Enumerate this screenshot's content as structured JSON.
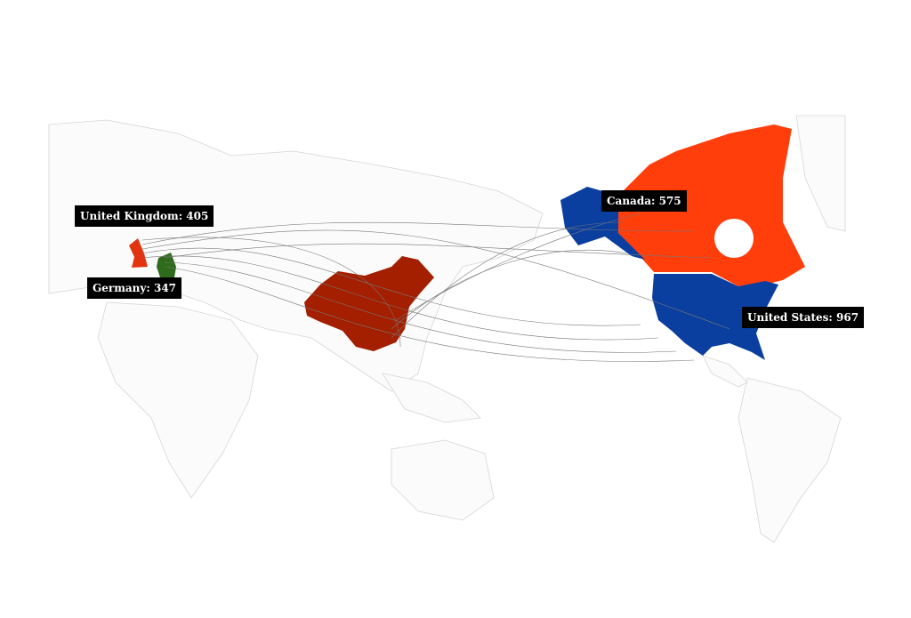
{
  "map": {
    "colors": {
      "china": "#a31f00",
      "united_kingdom": "#e2350f",
      "germany": "#2e6b1c",
      "canada": "#ff3e0c",
      "united_states": "#0a3f9f",
      "land_outline": "#d6d6d6",
      "arc": "#777777"
    },
    "labels": [
      {
        "country": "United Kingdom",
        "text": "United Kingdom: 405",
        "value": 405
      },
      {
        "country": "Germany",
        "text": "Germany: 347",
        "value": 347
      },
      {
        "country": "Canada",
        "text": "Canada: 575",
        "value": 575
      },
      {
        "country": "United States",
        "text": "United States: 967",
        "value": 967
      }
    ]
  }
}
